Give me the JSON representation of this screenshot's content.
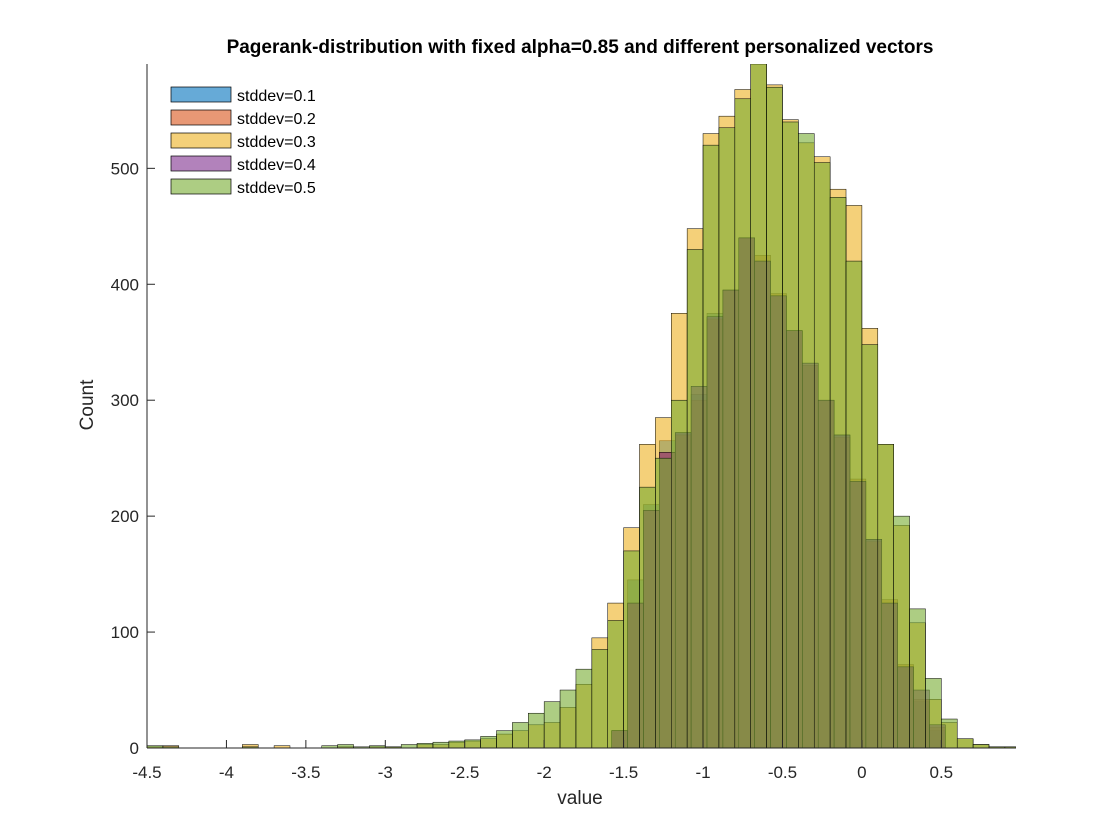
{
  "chart_data": {
    "type": "bar",
    "subtype": "overlapping-histogram",
    "title": "Pagerank-distribution with fixed alpha=0.85 and different personalized vectors",
    "xlabel": "value",
    "ylabel": "Count",
    "xlim": [
      -4.5,
      0.97
    ],
    "ylim": [
      0,
      590
    ],
    "xticks": [
      -4.5,
      -4,
      -3.5,
      -3,
      -2.5,
      -2,
      -1.5,
      -1,
      -0.5,
      0,
      0.5
    ],
    "xtick_labels": [
      "-4.5",
      "-4",
      "-3.5",
      "-3",
      "-2.5",
      "-2",
      "-1.5",
      "-1",
      "-0.5",
      "0",
      "0.5"
    ],
    "yticks": [
      0,
      100,
      200,
      300,
      400,
      500
    ],
    "ytick_labels": [
      "0",
      "100",
      "200",
      "300",
      "400",
      "500"
    ],
    "legend_position": "top-left",
    "grid": false,
    "face_alpha": 0.6,
    "series": [
      {
        "name": "stddev=0.1",
        "color": "#0072BD",
        "bin_edges": [
          -1.575,
          -1.475,
          -1.375,
          -1.275,
          -1.175,
          -1.075,
          -0.975,
          -0.875,
          -0.775,
          -0.675,
          -0.575,
          -0.475,
          -0.375,
          -0.275,
          -0.175,
          -0.075,
          0.025,
          0.125,
          0.225,
          0.325,
          0.425,
          0.525
        ],
        "counts": [
          15,
          145,
          210,
          265,
          272,
          305,
          375,
          395,
          440,
          420,
          390,
          360,
          330,
          300,
          270,
          230,
          180,
          125,
          70,
          40,
          15
        ]
      },
      {
        "name": "stddev=0.2",
        "color": "#D95319",
        "bin_edges": [
          -1.575,
          -1.475,
          -1.375,
          -1.275,
          -1.175,
          -1.075,
          -0.975,
          -0.875,
          -0.775,
          -0.675,
          -0.575,
          -0.475,
          -0.375,
          -0.275,
          -0.175,
          -0.075,
          0.025,
          0.125,
          0.225,
          0.325,
          0.425,
          0.525
        ],
        "counts": [
          15,
          125,
          205,
          255,
          270,
          300,
          370,
          395,
          440,
          425,
          392,
          360,
          330,
          300,
          268,
          232,
          178,
          128,
          72,
          42,
          18
        ]
      },
      {
        "name": "stddev=0.3",
        "color": "#EDB120",
        "bin_edges": [
          -4.5,
          -4.4,
          -4.3,
          -4.2,
          -4.1,
          -4.0,
          -3.9,
          -3.8,
          -3.7,
          -3.6,
          -3.5,
          -3.4,
          -3.3,
          -3.2,
          -3.1,
          -3.0,
          -2.9,
          -2.8,
          -2.7,
          -2.6,
          -2.5,
          -2.4,
          -2.3,
          -2.2,
          -2.1,
          -2.0,
          -1.9,
          -1.8,
          -1.7,
          -1.6,
          -1.5,
          -1.4,
          -1.3,
          -1.2,
          -1.1,
          -1.0,
          -0.9,
          -0.8,
          -0.7,
          -0.6,
          -0.5,
          -0.4,
          -0.3,
          -0.2,
          -0.1,
          0.0,
          0.1,
          0.2,
          0.3,
          0.4,
          0.5,
          0.6,
          0.7,
          0.8,
          0.9,
          0.97
        ],
        "counts": [
          1,
          2,
          0,
          0,
          0,
          0,
          3,
          0,
          2,
          0,
          0,
          0,
          1,
          0,
          1,
          1,
          0,
          3,
          3,
          5,
          6,
          8,
          12,
          15,
          20,
          22,
          35,
          55,
          95,
          125,
          190,
          262,
          285,
          375,
          448,
          530,
          545,
          568,
          592,
          572,
          542,
          522,
          510,
          482,
          468,
          362,
          262,
          192,
          108,
          42,
          22,
          8,
          3,
          1,
          1
        ]
      },
      {
        "name": "stddev=0.4",
        "color": "#7E2F8E",
        "bin_edges": [
          -1.575,
          -1.475,
          -1.375,
          -1.275,
          -1.175,
          -1.075,
          -0.975,
          -0.875,
          -0.775,
          -0.675,
          -0.575,
          -0.475,
          -0.375,
          -0.275,
          -0.175,
          -0.075,
          0.025,
          0.125,
          0.225,
          0.325,
          0.425,
          0.525
        ],
        "counts": [
          15,
          125,
          205,
          255,
          272,
          312,
          372,
          395,
          440,
          420,
          390,
          360,
          332,
          300,
          270,
          230,
          180,
          125,
          70,
          50,
          20
        ]
      },
      {
        "name": "stddev=0.5",
        "color": "#77AC30",
        "bin_edges": [
          -4.5,
          -4.4,
          -4.3,
          -4.2,
          -4.1,
          -4.0,
          -3.9,
          -3.8,
          -3.7,
          -3.6,
          -3.5,
          -3.4,
          -3.3,
          -3.2,
          -3.1,
          -3.0,
          -2.9,
          -2.8,
          -2.7,
          -2.6,
          -2.5,
          -2.4,
          -2.3,
          -2.2,
          -2.1,
          -2.0,
          -1.9,
          -1.8,
          -1.7,
          -1.6,
          -1.5,
          -1.4,
          -1.3,
          -1.2,
          -1.1,
          -1.0,
          -0.9,
          -0.8,
          -0.7,
          -0.6,
          -0.5,
          -0.4,
          -0.3,
          -0.2,
          -0.1,
          0.0,
          0.1,
          0.2,
          0.3,
          0.4,
          0.5,
          0.6,
          0.7,
          0.8,
          0.9,
          0.97
        ],
        "counts": [
          2,
          1,
          0,
          0,
          0,
          0,
          1,
          0,
          0,
          0,
          0,
          2,
          3,
          1,
          2,
          1,
          3,
          4,
          5,
          6,
          7,
          10,
          15,
          22,
          30,
          40,
          50,
          68,
          85,
          110,
          170,
          225,
          250,
          300,
          430,
          520,
          535,
          560,
          590,
          570,
          540,
          530,
          505,
          475,
          420,
          348,
          262,
          200,
          120,
          60,
          25,
          8,
          3,
          1,
          1
        ]
      }
    ]
  }
}
